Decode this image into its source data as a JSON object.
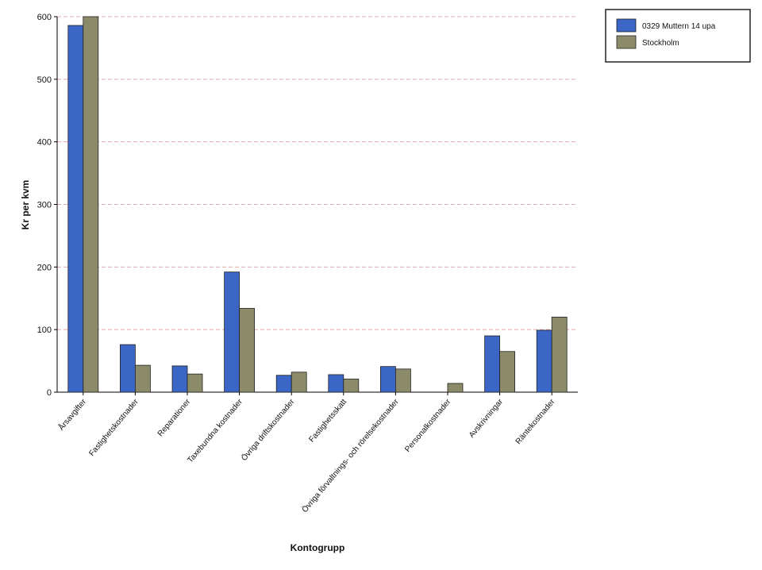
{
  "chart_data": {
    "type": "bar",
    "x_label": "Kontogrupp",
    "y_label": "Kr per kvm",
    "categories": [
      "Årsavgifter",
      "Fastighetskostnader",
      "Reparationer",
      "Taxebundna kostnader",
      "Övriga driftskostnader",
      "Fastighetsskatt",
      "Övriga förvaltnings- och rörelsekostnader",
      "Personalkostnader",
      "Avskrivningar",
      "Räntekostnader"
    ],
    "series": [
      {
        "name": "0329 Muttern 14 upa",
        "color": "#3b66c6",
        "values": [
          586,
          76,
          42,
          192,
          27,
          28,
          41,
          0,
          90,
          99
        ]
      },
      {
        "name": "Stockholm",
        "color": "#8b8b69",
        "values": [
          600,
          43,
          29,
          134,
          32,
          21,
          37,
          14,
          65,
          120
        ]
      }
    ],
    "ylim": [
      0,
      600
    ],
    "yticks": [
      0,
      100,
      200,
      300,
      400,
      500,
      600
    ],
    "grid": true,
    "legend": "top-right"
  }
}
